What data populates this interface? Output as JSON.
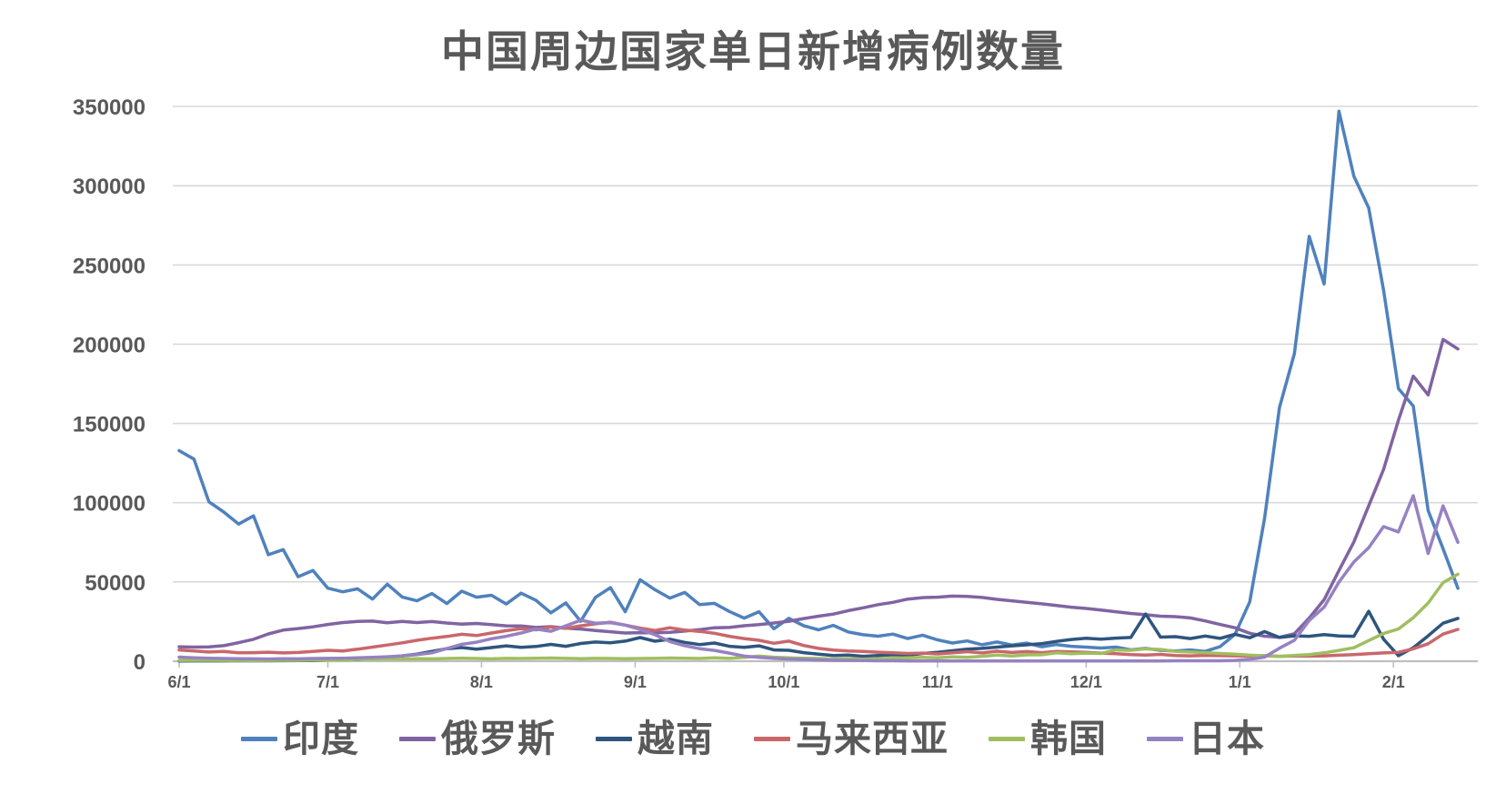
{
  "title": "中国周边国家单日新增病例数量",
  "palette": {
    "title_text": "#595959",
    "axis_text": "#595959",
    "gridline": "#D9D9D9",
    "axis_line": "#BFBFBF",
    "background": "#FFFFFF"
  },
  "chart_data": {
    "type": "line",
    "title": "中国周边国家单日新增病例数量",
    "xlabel": "",
    "ylabel": "",
    "grid": "horizontal",
    "legend_position": "bottom",
    "y_axis": {
      "min": 0,
      "max": 350000,
      "tick_interval": 50000,
      "tick_values": [
        350000,
        300000,
        250000,
        200000,
        150000,
        100000,
        50000,
        0
      ],
      "tick_labels": [
        "350000",
        "300000",
        "250000",
        "200000",
        "150000",
        "100000",
        "50000",
        "0"
      ]
    },
    "x_axis": {
      "description": "daily dates from 6/1 to mid-February (month/day)",
      "tick_labels": [
        "6/1",
        "7/1",
        "8/1",
        "9/1",
        "10/1",
        "11/1",
        "12/1",
        "1/1",
        "2/1"
      ],
      "tick_days": [
        0,
        30,
        61,
        92,
        122,
        153,
        183,
        214,
        245
      ],
      "total_days": 258
    },
    "sample_days": [
      0,
      3,
      6,
      9,
      12,
      15,
      18,
      21,
      24,
      27,
      30,
      33,
      36,
      39,
      42,
      45,
      48,
      51,
      54,
      57,
      60,
      63,
      66,
      69,
      72,
      75,
      78,
      81,
      84,
      87,
      90,
      93,
      96,
      99,
      102,
      105,
      108,
      111,
      114,
      117,
      120,
      123,
      126,
      129,
      132,
      135,
      138,
      141,
      144,
      147,
      150,
      153,
      156,
      159,
      162,
      165,
      168,
      171,
      174,
      177,
      180,
      183,
      186,
      189,
      192,
      195,
      198,
      201,
      204,
      207,
      210,
      213,
      216,
      219,
      222,
      225,
      228,
      231,
      234,
      237,
      240,
      243,
      246,
      249,
      252,
      255,
      258
    ],
    "series": [
      {
        "name": "印度",
        "color": "#4F81BD",
        "values": [
          132800,
          127500,
          100600,
          94100,
          86500,
          91700,
          67200,
          70400,
          53300,
          57200,
          46100,
          43800,
          45700,
          39200,
          48600,
          40500,
          38100,
          42700,
          36400,
          44200,
          40400,
          41600,
          36100,
          42900,
          38400,
          30500,
          36800,
          25200,
          40300,
          46400,
          31200,
          51400,
          45100,
          39800,
          43400,
          35700,
          36500,
          31400,
          27200,
          31200,
          20500,
          27100,
          22400,
          19800,
          22600,
          18400,
          16700,
          15800,
          17100,
          14300,
          16400,
          13500,
          11500,
          12800,
          10400,
          12100,
          10200,
          11400,
          9100,
          10500,
          9400,
          8900,
          8300,
          8900,
          7200,
          8100,
          6900,
          6400,
          7100,
          6200,
          9200,
          16800,
          37400,
          90000,
          160000,
          194000,
          268000,
          238000,
          347000,
          306000,
          286000,
          234000,
          172000,
          161000,
          95000,
          71000,
          46000
        ]
      },
      {
        "name": "俄罗斯",
        "color": "#8064A2",
        "values": [
          9100,
          8900,
          9000,
          9800,
          11700,
          13800,
          17200,
          19600,
          20600,
          21700,
          23200,
          24400,
          25100,
          25300,
          24200,
          25100,
          24400,
          25000,
          24100,
          23400,
          23800,
          23100,
          22300,
          22200,
          21300,
          21800,
          20900,
          20300,
          19400,
          18600,
          17800,
          18000,
          17900,
          18200,
          19000,
          19900,
          21100,
          21300,
          22400,
          23100,
          24100,
          25200,
          26900,
          28400,
          29700,
          31900,
          33700,
          35700,
          37100,
          39200,
          40100,
          40400,
          41100,
          40900,
          40200,
          39000,
          38100,
          37100,
          36200,
          35100,
          34100,
          33300,
          32300,
          31200,
          30100,
          29300,
          28400,
          28100,
          27300,
          25400,
          23200,
          21100,
          17600,
          15800,
          15100,
          17300,
          27200,
          38800,
          57200,
          75200,
          98000,
          121000,
          152000,
          179900,
          168000,
          203000,
          197000
        ]
      },
      {
        "name": "越南",
        "color": "#2E557E",
        "values": [
          200,
          210,
          220,
          250,
          270,
          290,
          310,
          350,
          400,
          480,
          700,
          900,
          1100,
          1600,
          2300,
          3400,
          4500,
          6200,
          7900,
          8600,
          7600,
          8600,
          9700,
          8800,
          9300,
          10600,
          9400,
          11200,
          12100,
          11600,
          12700,
          14900,
          12600,
          13800,
          11900,
          10500,
          11500,
          9400,
          8700,
          9700,
          7100,
          6900,
          5400,
          4500,
          3600,
          3900,
          3100,
          3600,
          4100,
          3800,
          4900,
          5600,
          6600,
          7600,
          8100,
          8900,
          9700,
          10300,
          11100,
          12500,
          13700,
          14500,
          13900,
          14600,
          15000,
          29800,
          15200,
          15500,
          14300,
          15900,
          14400,
          17000,
          14800,
          18700,
          15000,
          16000,
          15700,
          16800,
          15900,
          15700,
          31500,
          13900,
          3500,
          8500,
          16000,
          24000,
          27000
        ]
      },
      {
        "name": "马来西亚",
        "color": "#C9676B",
        "values": [
          7100,
          6500,
          5800,
          6200,
          5300,
          5400,
          5700,
          5200,
          5500,
          6200,
          6900,
          6500,
          7600,
          8900,
          10200,
          11600,
          13200,
          14500,
          15600,
          17000,
          16200,
          17800,
          19300,
          20600,
          19800,
          21500,
          20700,
          22300,
          23600,
          24600,
          22800,
          20900,
          19400,
          21100,
          19600,
          18800,
          17600,
          15700,
          14300,
          13200,
          11300,
          12700,
          9900,
          8100,
          7000,
          6500,
          6200,
          5700,
          5300,
          4900,
          5100,
          4600,
          5300,
          6000,
          5200,
          6300,
          5500,
          6100,
          5400,
          6200,
          5900,
          5600,
          5100,
          4700,
          4200,
          3900,
          4300,
          3600,
          3400,
          3700,
          3500,
          3400,
          3200,
          3500,
          3100,
          3300,
          3200,
          3400,
          3800,
          4200,
          4700,
          5200,
          5600,
          7800,
          11000,
          17100,
          20100
        ]
      },
      {
        "name": "韩国",
        "color": "#A0BE5F",
        "values": [
          500,
          600,
          600,
          500,
          500,
          400,
          500,
          600,
          600,
          700,
          800,
          700,
          1200,
          1300,
          1500,
          1400,
          1600,
          1500,
          1700,
          1900,
          1700,
          1500,
          1800,
          1700,
          1900,
          2000,
          1800,
          1600,
          1800,
          1700,
          1600,
          1700,
          1800,
          2000,
          1900,
          1700,
          2100,
          1800,
          2400,
          3200,
          2500,
          2100,
          1900,
          1700,
          1400,
          1600,
          1300,
          1600,
          1900,
          2100,
          2400,
          2100,
          2700,
          2400,
          3100,
          3900,
          3300,
          4000,
          4100,
          5300,
          4700,
          5100,
          4900,
          7100,
          6900,
          7800,
          7400,
          6200,
          5800,
          5400,
          4900,
          4400,
          3800,
          3400,
          3000,
          3700,
          4200,
          5300,
          6800,
          8500,
          13000,
          17500,
          20300,
          27400,
          36700,
          49600,
          54900
        ]
      },
      {
        "name": "日本",
        "color": "#9682C2",
        "values": [
          2600,
          2200,
          1900,
          1700,
          1600,
          1500,
          1400,
          1600,
          1500,
          1700,
          1800,
          1900,
          2100,
          2400,
          2800,
          3400,
          4200,
          5300,
          8000,
          10700,
          12000,
          14200,
          15700,
          17800,
          20300,
          18900,
          22300,
          25900,
          24000,
          24300,
          22800,
          20000,
          16700,
          12400,
          9800,
          7900,
          6800,
          5100,
          3200,
          2400,
          1800,
          1400,
          1100,
          800,
          600,
          500,
          400,
          300,
          300,
          200,
          200,
          200,
          200,
          200,
          100,
          100,
          100,
          100,
          100,
          100,
          100,
          100,
          100,
          100,
          200,
          200,
          200,
          300,
          300,
          300,
          300,
          500,
          1200,
          2600,
          8200,
          13200,
          25700,
          34100,
          49900,
          62600,
          71600,
          84900,
          81600,
          104400,
          68000,
          98000,
          75000
        ]
      }
    ]
  }
}
